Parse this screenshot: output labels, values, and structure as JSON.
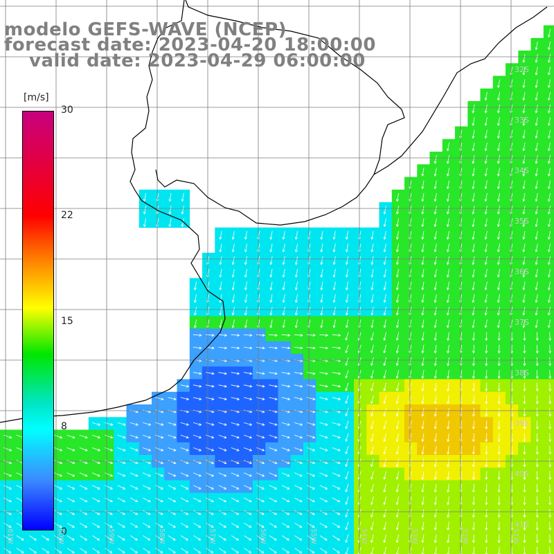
{
  "header": {
    "model": "modelo GEFS-WAVE (NCEP)",
    "forecast_date": "forecast date: 2023-04-20 18:00:00",
    "valid_date": "valid date: 2023-04-29 06:00:00"
  },
  "colorbar": {
    "unit": "[m/s]",
    "ticks": [
      "30",
      "22",
      "15",
      "8",
      "0"
    ],
    "colors": [
      "#c8007f",
      "#ff0000",
      "#ff6400",
      "#ffff00",
      "#00e600",
      "#00e6c8",
      "#00ffff",
      "#3c8cff",
      "#0000ff"
    ]
  },
  "lat_labels": [
    "32S",
    "33S",
    "34S",
    "35S",
    "36S",
    "37S",
    "38S",
    "39S",
    "40S",
    "41S"
  ],
  "lon_labels": [
    "61W",
    "60W",
    "59W",
    "58W",
    "57W",
    "56W",
    "55W",
    "54W",
    "53W",
    "52W",
    "51W"
  ],
  "palette": {
    "blue": "#1e64ff",
    "light_blue": "#3ca0ff",
    "cyan": "#00e6f0",
    "aqua_green": "#00f0b4",
    "green": "#28e628",
    "yellow_green": "#a0f000",
    "yellow": "#f0f000",
    "orange_yellow": "#f0c800",
    "land": "#ffffff",
    "grid": "#7a7a7a",
    "coast": "#000000"
  }
}
